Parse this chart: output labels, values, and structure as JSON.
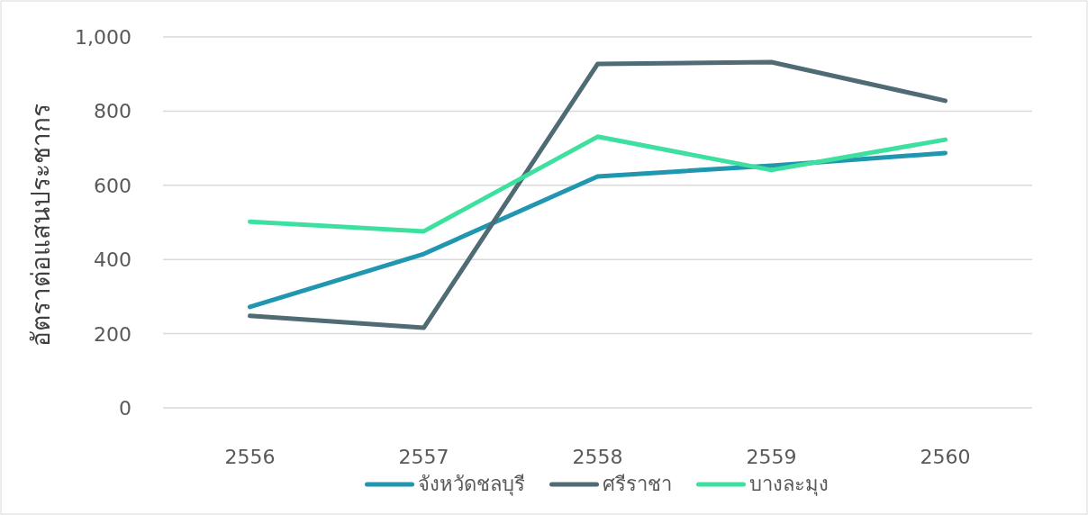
{
  "chart_data": {
    "type": "line",
    "ylabel": "อัตราต่อแสนประชากร",
    "categories": [
      "2556",
      "2557",
      "2558",
      "2559",
      "2560"
    ],
    "series": [
      {
        "name": "จังหวัดชลบุรี",
        "color": "#2196b0",
        "values": [
          272,
          415,
          624,
          653,
          687
        ]
      },
      {
        "name": "ศรีราชา",
        "color": "#4f6b73",
        "values": [
          248,
          216,
          927,
          932,
          828
        ]
      },
      {
        "name": "บางละมุง",
        "color": "#3ee0a0",
        "values": [
          502,
          476,
          731,
          641,
          723
        ]
      }
    ],
    "ylim": [
      0,
      1000
    ],
    "yticks": [
      0,
      {
        "value": 200,
        "label": "200"
      },
      {
        "value": 400,
        "label": "400"
      },
      {
        "value": 600,
        "label": "600"
      },
      {
        "value": 800,
        "label": "800"
      },
      {
        "value": 1000,
        "label": "1,000"
      }
    ],
    "grid": "y",
    "legend": "bottom",
    "marker": "none",
    "line_style": "solid"
  }
}
